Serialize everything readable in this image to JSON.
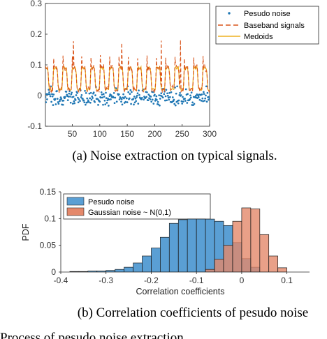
{
  "chart_data": [
    {
      "type": "line",
      "xlim": [
        1,
        300
      ],
      "ylim": [
        -0.1,
        0.3
      ],
      "xticks": [
        "50",
        "100",
        "150",
        "200",
        "250",
        "300"
      ],
      "yticks": [
        "-0.1",
        "0",
        "0.1",
        "0.2",
        "0.3"
      ],
      "grid": false,
      "legend_position": "top-right",
      "signal": {
        "low_level": 0.02,
        "high_level": 0.09,
        "peak_level": 0.12,
        "approx_period_samples": 17
      },
      "series": [
        {
          "name": "Pesudo noise",
          "style": "points",
          "color": "#1f77b4",
          "approx_range": [
            -0.06,
            0.03
          ]
        },
        {
          "name": "Baseband signals",
          "style": "dashed",
          "color": "#d95319"
        },
        {
          "name": "Medoids",
          "style": "solid",
          "color": "#edb120"
        }
      ],
      "caption": "(a) Noise extraction on typical signals."
    },
    {
      "type": "bar",
      "xlabel": "Correlation coefficients",
      "ylabel": "PDF",
      "xlim": [
        -0.4,
        0.15
      ],
      "ylim": [
        0,
        0.15
      ],
      "xticks": [
        "-0.4",
        "-0.3",
        "-0.2",
        "-0.1",
        "0",
        "0.1"
      ],
      "yticks": [
        "0",
        "0.05",
        "0.1",
        "0.15"
      ],
      "legend_position": "top-left",
      "series": [
        {
          "name": "Pesudo noise",
          "color": "#5a9fd4",
          "bin_edges": [
            -0.38,
            -0.36,
            -0.34,
            -0.32,
            -0.3,
            -0.28,
            -0.26,
            -0.24,
            -0.22,
            -0.2,
            -0.18,
            -0.16,
            -0.14,
            -0.12,
            -0.1,
            -0.08,
            -0.06,
            -0.04,
            -0.02,
            0.0,
            0.02,
            0.04
          ],
          "values": [
            0.001,
            0.001,
            0.002,
            0.002,
            0.003,
            0.005,
            0.009,
            0.017,
            0.03,
            0.045,
            0.065,
            0.091,
            0.098,
            0.1,
            0.1,
            0.099,
            0.095,
            0.087,
            0.055,
            0.025,
            0.009
          ]
        },
        {
          "name": "Gaussian noise ~ N(0,1)",
          "color": "#e4886a",
          "bin_edges": [
            -0.08,
            -0.06,
            -0.04,
            -0.02,
            0.0,
            0.02,
            0.04,
            0.06,
            0.08,
            0.1
          ],
          "values": [
            0.005,
            0.024,
            0.05,
            0.095,
            0.12,
            0.118,
            0.07,
            0.03,
            0.008
          ]
        }
      ],
      "caption": "(b) Correlation coefficients of pesudo noise"
    }
  ],
  "footer_partial": "Process of pesudo noise extraction"
}
